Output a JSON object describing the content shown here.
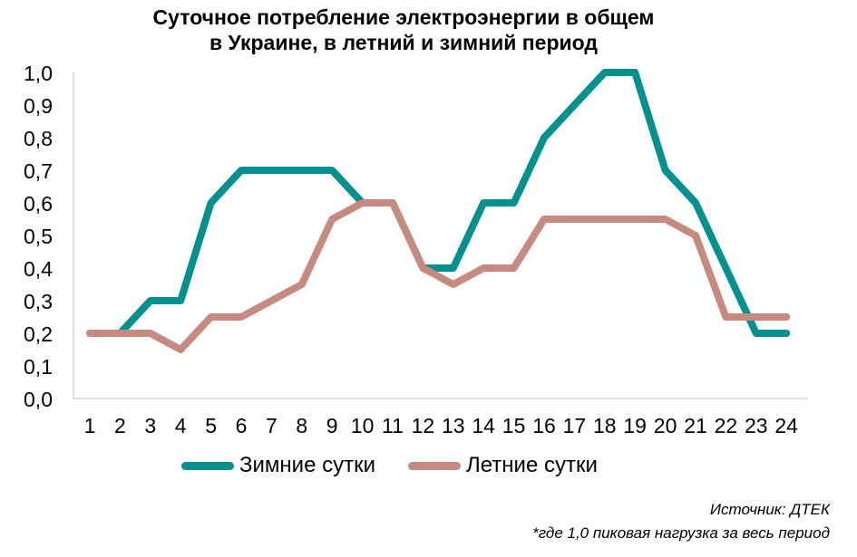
{
  "chart_data": {
    "type": "line",
    "title_lines": [
      "Суточное потребление электроэнергии в общем",
      "в Украине, в летний и зимний период"
    ],
    "x": [
      1,
      2,
      3,
      4,
      5,
      6,
      7,
      8,
      9,
      10,
      11,
      12,
      13,
      14,
      15,
      16,
      17,
      18,
      19,
      20,
      21,
      22,
      23,
      24
    ],
    "x_tick_labels": [
      "1",
      "2",
      "3",
      "4",
      "5",
      "6",
      "7",
      "8",
      "9",
      "10",
      "11",
      "12",
      "13",
      "14",
      "15",
      "16",
      "17",
      "18",
      "19",
      "20",
      "21",
      "22",
      "23",
      "24"
    ],
    "y_tick_labels": [
      "0,0",
      "0,1",
      "0,2",
      "0,3",
      "0,4",
      "0,5",
      "0,6",
      "0,7",
      "0,8",
      "0,9",
      "1,0"
    ],
    "ylim": [
      0,
      1
    ],
    "grid": false,
    "legend_position": "bottom",
    "series": [
      {
        "name": "Зимние сутки",
        "color": "#02918F",
        "values": [
          0.2,
          0.2,
          0.3,
          0.3,
          0.6,
          0.7,
          0.7,
          0.7,
          0.7,
          0.6,
          0.6,
          0.4,
          0.4,
          0.6,
          0.6,
          0.8,
          0.9,
          1.0,
          1.0,
          0.7,
          0.6,
          0.4,
          0.2,
          0.2
        ]
      },
      {
        "name": "Летние сутки",
        "color": "#C78A80",
        "values": [
          0.2,
          0.2,
          0.2,
          0.15,
          0.25,
          0.25,
          0.3,
          0.35,
          0.55,
          0.6,
          0.6,
          0.4,
          0.35,
          0.4,
          0.4,
          0.55,
          0.55,
          0.55,
          0.55,
          0.55,
          0.5,
          0.25,
          0.25,
          0.25
        ]
      }
    ]
  },
  "footer": {
    "source": "Источник: ДТЕК",
    "note": "*где 1,0 пиковая нагрузка за весь период"
  }
}
